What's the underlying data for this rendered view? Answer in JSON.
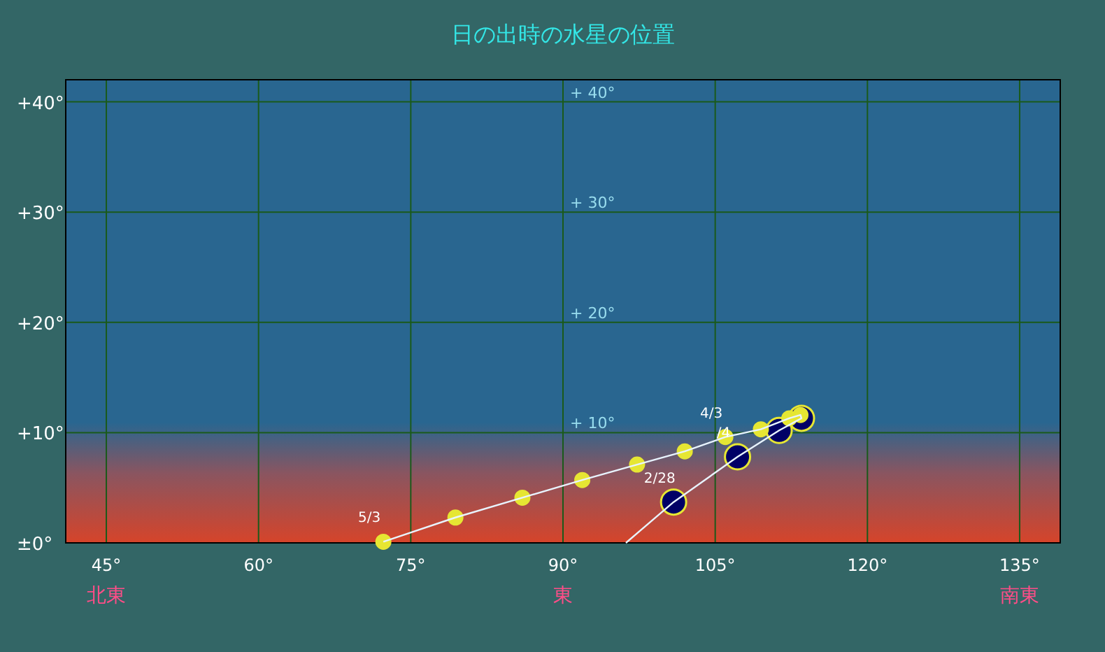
{
  "chart_data": {
    "type": "scatter",
    "title": "日の出時の水星の位置",
    "xlim": [
      41,
      139
    ],
    "ylim": [
      0,
      42
    ],
    "xticks": [
      {
        "value": 45,
        "label": "45°"
      },
      {
        "value": 60,
        "label": "60°"
      },
      {
        "value": 75,
        "label": "75°"
      },
      {
        "value": 90,
        "label": "90°"
      },
      {
        "value": 105,
        "label": "105°"
      },
      {
        "value": 120,
        "label": "120°"
      },
      {
        "value": 135,
        "label": "135°"
      }
    ],
    "yticks": [
      {
        "value": 0,
        "label": "±0°"
      },
      {
        "value": 10,
        "label": "+10°"
      },
      {
        "value": 20,
        "label": "+20°"
      },
      {
        "value": 30,
        "label": "+30°"
      },
      {
        "value": 40,
        "label": "+40°"
      }
    ],
    "grid": true,
    "marker": "circle",
    "series": [
      {
        "type": "line",
        "marker": "none",
        "color": "#e8f4ff",
        "x": [
          96.2,
          100.9,
          107.2,
          111.3,
          113.5,
          113.4,
          112.3,
          109.5,
          106.0,
          102.0,
          97.3,
          91.9,
          86.0,
          79.4,
          72.3
        ],
        "values": [
          0,
          3.7,
          7.8,
          10.2,
          11.3,
          11.6,
          11.3,
          10.3,
          9.6,
          8.3,
          7.1,
          5.7,
          4.1,
          2.3,
          0.1
        ]
      },
      {
        "color": "#000066",
        "x": [
          100.9,
          107.2,
          111.3,
          113.5
        ],
        "values": [
          3.7,
          7.8,
          10.2,
          11.3
        ]
      },
      {
        "color": "#e6e633",
        "x": [
          113.4,
          112.3,
          109.5,
          106.0,
          102.0,
          97.3,
          91.9,
          86.0,
          79.4,
          72.3
        ],
        "values": [
          11.6,
          11.3,
          10.3,
          9.6,
          8.3,
          7.1,
          5.7,
          4.1,
          2.3,
          0.1
        ]
      }
    ],
    "annotations": [
      {
        "text": "2/28",
        "x": 100.9,
        "y": 3.7
      },
      {
        "text": "/4",
        "x": 107.2,
        "y": 7.8
      },
      {
        "text": "4/3",
        "x": 106.0,
        "y": 9.6
      },
      {
        "text": "5/3",
        "x": 72.3,
        "y": 0.1
      },
      "+ 10°",
      "+ 20°",
      "+ 30°",
      "+ 40°",
      "北東",
      "東",
      "南東"
    ]
  }
}
